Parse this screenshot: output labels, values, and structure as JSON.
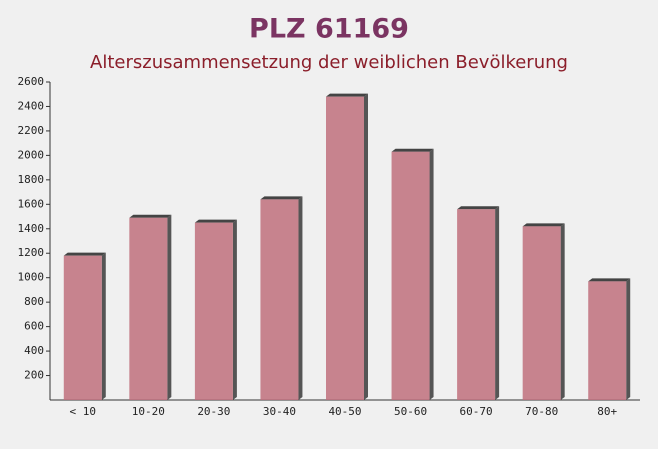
{
  "chart_data": {
    "type": "bar",
    "title": "PLZ 61169",
    "subtitle": "Alterszusammensetzung der weiblichen Bevölkerung",
    "categories": [
      "< 10",
      "10-20",
      "20-30",
      "30-40",
      "40-50",
      "50-60",
      "60-70",
      "70-80",
      "80+"
    ],
    "values": [
      1180,
      1490,
      1450,
      1640,
      2480,
      2030,
      1560,
      1420,
      970
    ],
    "color": "#c0707c",
    "ylim": [
      0,
      2600
    ],
    "yticks": [
      200,
      400,
      600,
      800,
      1000,
      1200,
      1400,
      1600,
      1800,
      2000,
      2200,
      2400,
      2600
    ],
    "grid": false
  }
}
